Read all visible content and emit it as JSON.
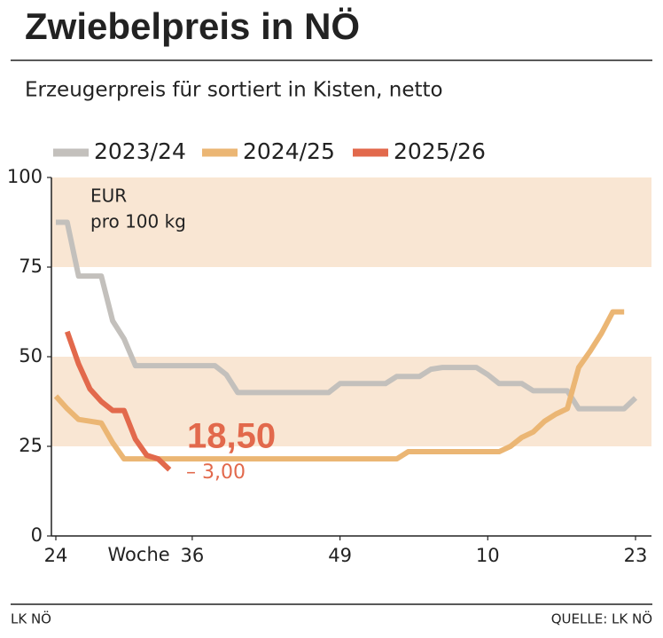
{
  "chart_data": {
    "type": "line",
    "title": "Zwiebelpreis in NÖ",
    "subtitle": "Erzeugerpreis für sortiert in Kisten, netto",
    "y_label": [
      "EUR",
      "pro 100 kg"
    ],
    "x_label": "Woche",
    "categories": [
      "24",
      null,
      null,
      null,
      null,
      null,
      null,
      null,
      null,
      null,
      null,
      null,
      "36",
      null,
      null,
      null,
      null,
      null,
      null,
      null,
      null,
      null,
      null,
      null,
      null,
      "49",
      null,
      null,
      null,
      null,
      null,
      null,
      null,
      null,
      null,
      null,
      null,
      null,
      "10",
      null,
      null,
      null,
      null,
      null,
      null,
      null,
      null,
      null,
      null,
      null,
      null,
      "23"
    ],
    "series": [
      {
        "name": "2023/24",
        "color": "#c3c0bc",
        "values": [
          87.5,
          87.5,
          72.5,
          72.5,
          72.5,
          60,
          55,
          47.5,
          47.5,
          47.5,
          47.5,
          47.5,
          47.5,
          47.5,
          47.5,
          45,
          40,
          40,
          40,
          40,
          40,
          40,
          40,
          40,
          40,
          42.5,
          42.5,
          42.5,
          42.5,
          42.5,
          44.5,
          44.5,
          44.5,
          46.5,
          47,
          47,
          47,
          47,
          45,
          42.5,
          42.5,
          42.5,
          40.5,
          40.5,
          40.5,
          40.5,
          35.5,
          35.5,
          35.5,
          35.5,
          35.5,
          38.5
        ]
      },
      {
        "name": "2024/25",
        "color": "#ebb674",
        "values": [
          39,
          35.5,
          32.5,
          32,
          31.5,
          26,
          21.5,
          21.5,
          21.5,
          21.5,
          21.5,
          21.5,
          21.5,
          21.5,
          21.5,
          21.5,
          21.5,
          21.5,
          21.5,
          21.5,
          21.5,
          21.5,
          21.5,
          21.5,
          21.5,
          21.5,
          21.5,
          21.5,
          21.5,
          21.5,
          21.5,
          23.5,
          23.5,
          23.5,
          23.5,
          23.5,
          23.5,
          23.5,
          23.5,
          23.5,
          25,
          27.5,
          29,
          32,
          34,
          35.5,
          47,
          51.5,
          56.5,
          62.5,
          62.5,
          null
        ]
      },
      {
        "name": "2025/26",
        "color": "#e2694c",
        "values": [
          null,
          57,
          48,
          41,
          37.5,
          35,
          35,
          27,
          22.5,
          21.5,
          18.5,
          null,
          null,
          null,
          null,
          null,
          null,
          null,
          null,
          null,
          null,
          null,
          null,
          null,
          null,
          null,
          null,
          null,
          null,
          null,
          null,
          null,
          null,
          null,
          null,
          null,
          null,
          null,
          null,
          null,
          null,
          null,
          null,
          null,
          null,
          null,
          null,
          null,
          null,
          null,
          null,
          null
        ]
      }
    ],
    "annotations": [
      "18,50",
      "– 3,00"
    ],
    "ylim": [
      0,
      100
    ],
    "yticks": [
      0,
      25,
      50,
      75,
      100
    ],
    "band_color": "#f9e6d3",
    "footer": "LK NÖ",
    "source": "QUELLE: LK NÖ"
  }
}
